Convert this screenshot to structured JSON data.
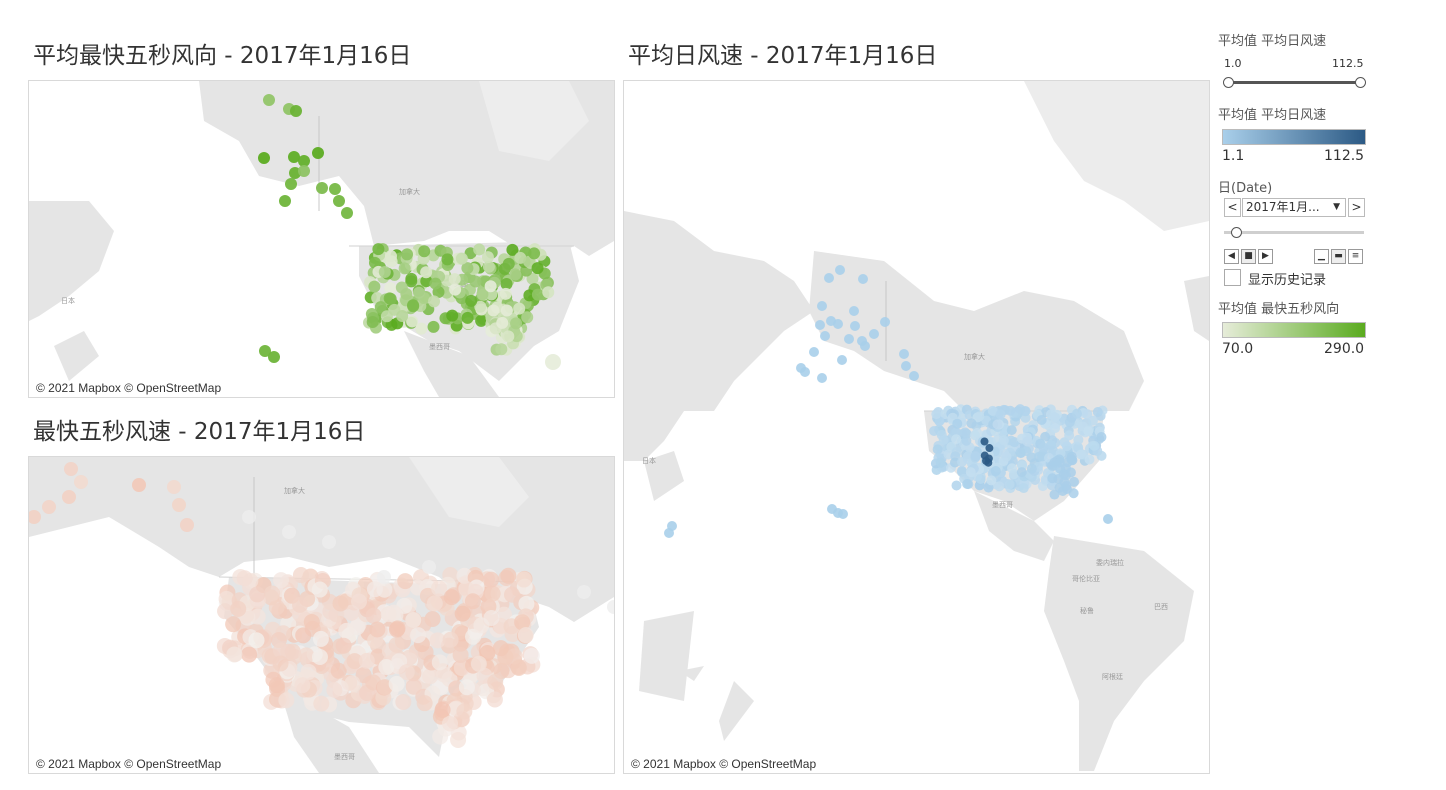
{
  "titles": {
    "direction": "平均最快五秒风向 - 2017年1月16日",
    "fastest": "最快五秒风速 - 2017年1月16日",
    "avg_speed": "平均日风速 - 2017年1月16日"
  },
  "attribution": "© 2021 Mapbox © OpenStreetMap",
  "map_labels": {
    "canada": "加拿大",
    "mexico": "墨西哥",
    "japan": "日本",
    "usa": "美国",
    "venezuela": "委内瑞拉",
    "colombia": "哥伦比亚",
    "brazil": "巴西",
    "peru": "秘鲁",
    "argentina": "阿根廷"
  },
  "legend": {
    "range_filter": {
      "title": "平均值 平均日风速",
      "min": "1.0",
      "max": "112.5"
    },
    "blue_scale": {
      "title": "平均值 平均日风速",
      "min": "1.1",
      "max": "112.5",
      "color_low": "#a9cfea",
      "color_high": "#2c5a85"
    },
    "date_filter": {
      "title": "日(Date)",
      "value": "2017年1月...",
      "prev": "<",
      "next": ">"
    },
    "history": {
      "label": "显示历史记录",
      "checked": false
    },
    "green_scale": {
      "title": "平均值 最快五秒风向",
      "min": "70.0",
      "max": "290.0",
      "color_low": "#e6ecd9",
      "color_high": "#5aab1f"
    }
  },
  "icons": {
    "prev": "chevron-left-icon",
    "next": "chevron-right-icon",
    "dropdown": "caret-down-icon",
    "play_back": "play-backward-icon",
    "pause": "pause-icon",
    "play": "play-forward-icon",
    "speed_slow": "speed-slow-icon",
    "speed_mid": "speed-medium-icon",
    "speed_fast": "speed-fast-icon"
  },
  "colors": {
    "direction_green": "#5aab1f",
    "speed_blue": "#a9cfea",
    "fastest_salmon": "#f2c4b2",
    "land": "#e5e5e5",
    "water": "#ffffff"
  }
}
